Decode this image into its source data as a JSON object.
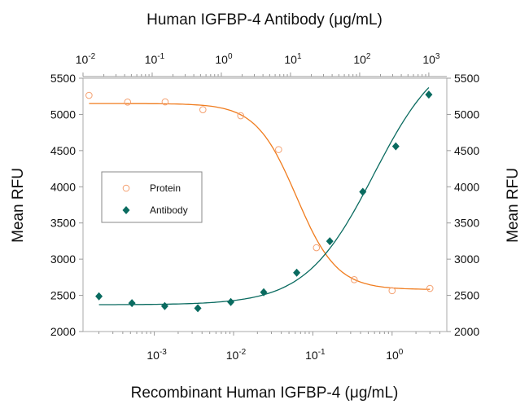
{
  "chart_data": {
    "type": "scatter",
    "title_top": "Human IGFBP-4 Antibody (μg/mL)",
    "xlabel": "Recombinant Human IGFBP-4 (μg/mL)",
    "ylabel_left": "Mean RFU",
    "ylabel_right": "Mean RFU",
    "x_scale": "log",
    "x_bottom_lim": [
      0.000126,
      4.9
    ],
    "x_top_lim": [
      0.01,
      1820
    ],
    "ylim": [
      2000,
      5500
    ],
    "y_ticks": [
      2000,
      2500,
      3000,
      3500,
      4000,
      4500,
      5000,
      5500
    ],
    "x_bottom_ticks": [
      {
        "base": "10",
        "exp": "-3",
        "value": 0.001
      },
      {
        "base": "10",
        "exp": "-2",
        "value": 0.01
      },
      {
        "base": "10",
        "exp": "-1",
        "value": 0.1
      },
      {
        "base": "10",
        "exp": "0",
        "value": 1
      }
    ],
    "x_top_ticks": [
      {
        "base": "10",
        "exp": "-2",
        "value": 0.01
      },
      {
        "base": "10",
        "exp": "-1",
        "value": 0.1
      },
      {
        "base": "10",
        "exp": "0",
        "value": 1
      },
      {
        "base": "10",
        "exp": "1",
        "value": 10
      },
      {
        "base": "10",
        "exp": "2",
        "value": 100
      },
      {
        "base": "10",
        "exp": "3",
        "value": 1000
      }
    ],
    "grid": false,
    "legend_position": "center-left",
    "series": [
      {
        "name": "Protein",
        "axis": "bottom",
        "marker": "open-circle",
        "color": "#f07c1e",
        "x": [
          0.00015,
          0.00046,
          0.00137,
          0.0041,
          0.0123,
          0.037,
          0.111,
          0.333,
          1,
          3
        ],
        "y": [
          5263,
          5170,
          5173,
          5065,
          4982,
          4514,
          3158,
          2717,
          2564,
          2596
        ]
      },
      {
        "name": "Antibody",
        "axis": "top",
        "marker": "filled-diamond",
        "color": "#0a6b60",
        "x": [
          0.017,
          0.051,
          0.152,
          0.457,
          1.37,
          4.1,
          12.3,
          37,
          111,
          333,
          1000
        ],
        "y": [
          2487,
          2393,
          2352,
          2322,
          2408,
          2543,
          2813,
          3248,
          3930,
          4559,
          5274
        ]
      }
    ]
  }
}
